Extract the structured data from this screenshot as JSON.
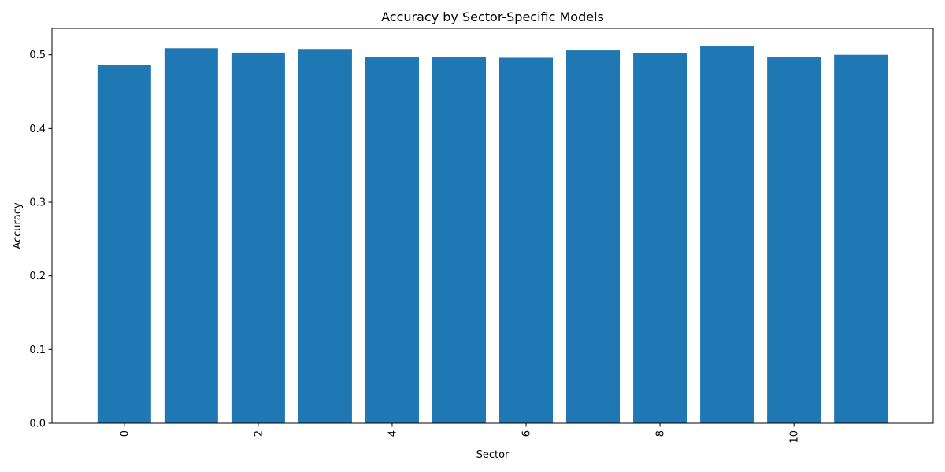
{
  "chart_data": {
    "type": "bar",
    "title": "Accuracy by Sector-Specific Models",
    "xlabel": "Sector",
    "ylabel": "Accuracy",
    "categories": [
      0,
      1,
      2,
      3,
      4,
      5,
      6,
      7,
      8,
      9,
      10,
      11
    ],
    "values": [
      0.486,
      0.509,
      0.503,
      0.508,
      0.497,
      0.497,
      0.496,
      0.506,
      0.502,
      0.512,
      0.497,
      0.5
    ],
    "color": "#1f77b4",
    "ylim": [
      0,
      0.536
    ],
    "yticks": [
      0.0,
      0.1,
      0.2,
      0.3,
      0.4,
      0.5
    ],
    "ytick_labels": [
      "0.0",
      "0.1",
      "0.2",
      "0.3",
      "0.4",
      "0.5"
    ],
    "xticks": [
      0,
      2,
      4,
      6,
      8,
      10
    ],
    "xtick_labels": [
      "0",
      "2",
      "4",
      "6",
      "8",
      "10"
    ],
    "xtick_rotation": "vertical",
    "grid": false,
    "legend": "none"
  }
}
